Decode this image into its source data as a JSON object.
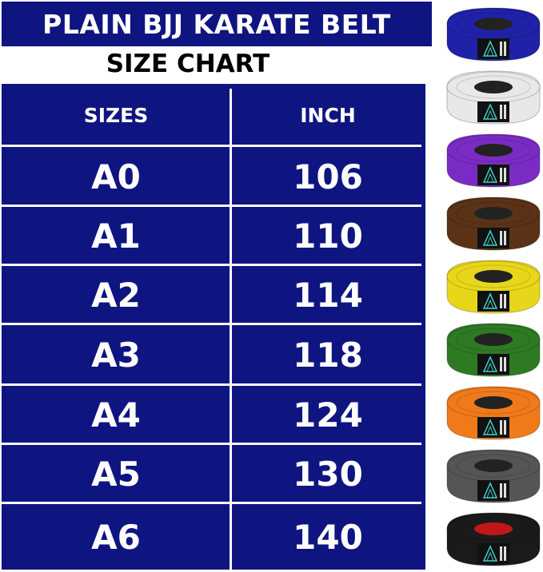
{
  "title": "PLAIN BJJ KARATE BELT",
  "subtitle": "SIZE CHART",
  "table": {
    "headers": [
      "SIZES",
      "INCH"
    ],
    "rows": [
      [
        "A0",
        "106"
      ],
      [
        "A1",
        "110"
      ],
      [
        "A2",
        "114"
      ],
      [
        "A3",
        "118"
      ],
      [
        "A4",
        "124"
      ],
      [
        "A5",
        "130"
      ],
      [
        "A6",
        "140"
      ]
    ]
  },
  "colors": {
    "table_bg": "#0f1580",
    "text": "#ffffff"
  },
  "belts": [
    {
      "color": "#1f22a8",
      "core": "#222222"
    },
    {
      "color": "#e8e8e8",
      "core": "#222222"
    },
    {
      "color": "#7a2bc4",
      "core": "#222222"
    },
    {
      "color": "#5a3216",
      "core": "#222222"
    },
    {
      "color": "#e8d61a",
      "core": "#222222"
    },
    {
      "color": "#2d7a22",
      "core": "#222222"
    },
    {
      "color": "#f07a1a",
      "core": "#222222"
    },
    {
      "color": "#555555",
      "core": "#222222"
    },
    {
      "color": "#1a1a1a",
      "core": "#c01818"
    }
  ]
}
